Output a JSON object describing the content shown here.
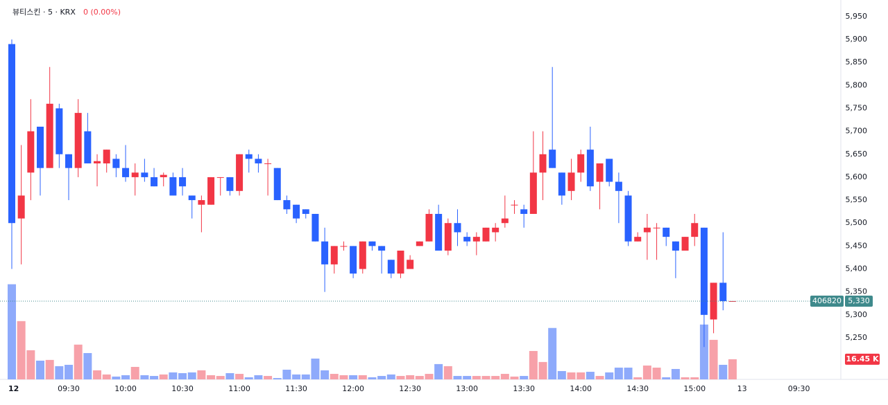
{
  "chart_data": {
    "type": "candlestick",
    "title": "뷰티스킨 · 5 · KRX",
    "change_label": "0 (0.00%)",
    "categories": [
      "12",
      null,
      null,
      null,
      null,
      null,
      "09:30",
      null,
      null,
      null,
      null,
      null,
      "10:00",
      null,
      null,
      null,
      null,
      null,
      "10:30",
      null,
      null,
      null,
      null,
      null,
      "11:00",
      null,
      null,
      null,
      null,
      null,
      "11:30",
      null,
      null,
      null,
      null,
      null,
      "12:00",
      null,
      null,
      null,
      null,
      null,
      "12:30",
      null,
      null,
      null,
      null,
      null,
      "13:00",
      null,
      null,
      null,
      null,
      null,
      "13:30",
      null,
      null,
      null,
      null,
      null,
      "14:00",
      null,
      null,
      null,
      null,
      null,
      "14:30",
      null,
      null,
      null,
      null,
      null,
      "15:00",
      null,
      null,
      null,
      null,
      "13",
      null,
      null,
      null,
      null,
      null,
      "09:30"
    ],
    "open": [
      5890,
      5510,
      5610,
      5710,
      5620,
      5750,
      5650,
      5620,
      5700,
      5630,
      5630,
      5640,
      5620,
      5600,
      5610,
      5600,
      5600,
      5600,
      5600,
      5560,
      5540,
      5540,
      5600,
      5600,
      5570,
      5650,
      5640,
      5630,
      5620,
      5550,
      5540,
      5530,
      5520,
      5460,
      5410,
      5450,
      5450,
      5400,
      5460,
      5450,
      5420,
      5390,
      5400,
      5450,
      5460,
      5520,
      5440,
      5500,
      5470,
      5460,
      5460,
      5480,
      5500,
      5540,
      5530,
      5520,
      5610,
      5660,
      5610,
      5570,
      5610,
      5660,
      5590,
      5640,
      5590,
      5560,
      5460,
      5480,
      5490,
      5490,
      5460,
      5440,
      5470,
      5490,
      5290,
      5370,
      5330,
      null,
      null,
      null,
      null,
      null,
      null,
      null
    ],
    "high": [
      5900,
      5670,
      5770,
      5710,
      5840,
      5760,
      5650,
      5770,
      5740,
      5650,
      5660,
      5650,
      5670,
      5630,
      5640,
      5620,
      5610,
      5610,
      5620,
      5560,
      5560,
      5600,
      5600,
      5600,
      5650,
      5660,
      5650,
      5640,
      5620,
      5560,
      5540,
      5530,
      5520,
      5490,
      5450,
      5460,
      5450,
      5460,
      5460,
      5450,
      5420,
      5440,
      5430,
      5460,
      5530,
      5540,
      5510,
      5530,
      5480,
      5480,
      5490,
      5500,
      5560,
      5550,
      5540,
      5700,
      5700,
      5840,
      5610,
      5640,
      5660,
      5710,
      5630,
      5640,
      5610,
      5570,
      5480,
      5520,
      5500,
      5490,
      5460,
      5470,
      5520,
      5490,
      5370,
      5480,
      5330,
      null,
      null,
      null,
      null,
      null,
      null,
      null
    ],
    "low": [
      5400,
      5410,
      5550,
      5560,
      5620,
      5620,
      5550,
      5600,
      5630,
      5580,
      5610,
      5600,
      5590,
      5560,
      5590,
      5580,
      5580,
      5560,
      5560,
      5510,
      5480,
      5540,
      5560,
      5560,
      5560,
      5610,
      5610,
      5560,
      5550,
      5520,
      5500,
      5510,
      5460,
      5350,
      5390,
      5440,
      5380,
      5390,
      5440,
      5390,
      5380,
      5380,
      5400,
      5450,
      5460,
      5440,
      5430,
      5450,
      5450,
      5430,
      5460,
      5460,
      5490,
      5520,
      5490,
      5520,
      5550,
      5620,
      5540,
      5550,
      5590,
      5570,
      5530,
      5580,
      5500,
      5450,
      5460,
      5420,
      5420,
      5450,
      5380,
      5440,
      5450,
      5230,
      5260,
      5310,
      5330,
      null,
      null,
      null,
      null,
      null,
      null,
      null
    ],
    "close": [
      5500,
      5560,
      5700,
      5620,
      5760,
      5650,
      5620,
      5740,
      5630,
      5635,
      5660,
      5620,
      5600,
      5610,
      5600,
      5580,
      5605,
      5560,
      5580,
      5550,
      5550,
      5600,
      5600,
      5570,
      5650,
      5640,
      5630,
      5630,
      5550,
      5530,
      5510,
      5520,
      5460,
      5410,
      5450,
      5450,
      5390,
      5460,
      5450,
      5440,
      5390,
      5440,
      5420,
      5460,
      5520,
      5440,
      5500,
      5480,
      5460,
      5470,
      5490,
      5490,
      5510,
      5540,
      5520,
      5610,
      5650,
      5620,
      5560,
      5610,
      5650,
      5580,
      5630,
      5590,
      5570,
      5460,
      5470,
      5490,
      5490,
      5470,
      5440,
      5470,
      5500,
      5300,
      5370,
      5330,
      5330,
      null,
      null,
      null,
      null,
      null,
      null,
      null
    ],
    "volume": [
      77.7,
      47.6,
      23.8,
      15.3,
      15.9,
      10.8,
      11.9,
      28.4,
      21.5,
      7.4,
      4.0,
      2.3,
      3.4,
      10.2,
      3.4,
      2.8,
      4.0,
      5.7,
      5.1,
      5.7,
      7.4,
      3.4,
      2.8,
      5.1,
      4.5,
      1.7,
      3.4,
      2.8,
      1.1,
      7.9,
      4.0,
      4.0,
      17.0,
      7.4,
      4.5,
      3.4,
      3.4,
      3.4,
      1.7,
      2.8,
      4.0,
      2.8,
      3.4,
      2.8,
      4.5,
      12.5,
      10.8,
      2.8,
      2.8,
      2.8,
      2.8,
      2.8,
      4.5,
      2.3,
      2.8,
      23.2,
      14.2,
      42.0,
      6.8,
      5.7,
      5.7,
      6.2,
      2.8,
      5.7,
      9.6,
      9.6,
      1.7,
      11.3,
      9.6,
      1.7,
      8.5,
      1.7,
      1.7,
      44.8,
      32.3,
      11.9,
      16.45,
      null,
      null,
      null,
      null,
      null,
      null,
      null
    ],
    "volume_label": "16.45 K",
    "volume_ylim": [
      0,
      95
    ],
    "up_color": "#f23645",
    "down_color": "#2962ff",
    "up_volume_color": "#f7a1a9",
    "down_volume_color": "#8eaafb",
    "ylim": [
      5164,
      5986
    ],
    "yticks": [
      {
        "value": 5250,
        "label": "5,250"
      },
      {
        "value": 5300,
        "label": "5,300"
      },
      {
        "value": 5350,
        "label": "5,350"
      },
      {
        "value": 5400,
        "label": "5,400"
      },
      {
        "value": 5450,
        "label": "5,450"
      },
      {
        "value": 5500,
        "label": "5,500"
      },
      {
        "value": 5550,
        "label": "5,550"
      },
      {
        "value": 5600,
        "label": "5,600"
      },
      {
        "value": 5650,
        "label": "5,650"
      },
      {
        "value": 5700,
        "label": "5,700"
      },
      {
        "value": 5750,
        "label": "5,750"
      },
      {
        "value": 5800,
        "label": "5,800"
      },
      {
        "value": 5850,
        "label": "5,850"
      },
      {
        "value": 5900,
        "label": "5,900"
      },
      {
        "value": 5950,
        "label": "5,950"
      }
    ],
    "last_price": {
      "value": 5330,
      "label": "5,330"
    },
    "code_label": "406820",
    "grid": false
  }
}
